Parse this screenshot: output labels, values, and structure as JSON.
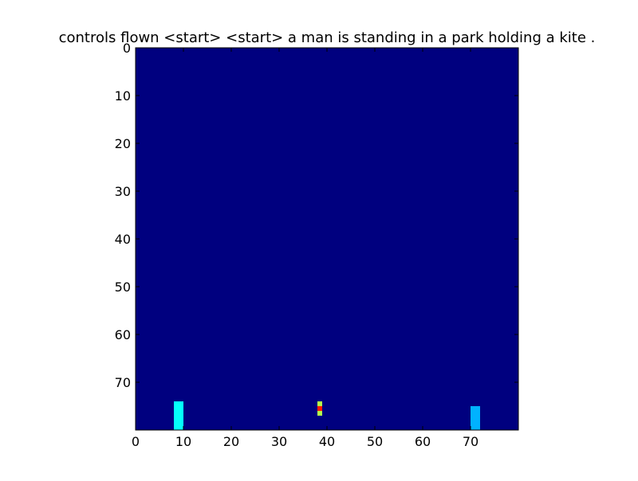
{
  "chart_data": {
    "type": "heatmap",
    "title": "controls flown <start> <start> a man is standing in a park holding a kite .",
    "xlabel": "",
    "ylabel": "",
    "grid_size": [
      80,
      80
    ],
    "xlim": [
      0,
      80
    ],
    "ylim": [
      80,
      0
    ],
    "x_ticks": [
      0,
      10,
      20,
      30,
      40,
      50,
      60,
      70
    ],
    "y_ticks": [
      0,
      10,
      20,
      30,
      40,
      50,
      60,
      70
    ],
    "grid": false,
    "background_value": 0.0,
    "colormap": "jet",
    "colormap_stops": [
      "#00007f",
      "#0000ff",
      "#007fff",
      "#00ffff",
      "#7fff7f",
      "#ffff00",
      "#ff7f00",
      "#ff0000",
      "#7f0000"
    ],
    "hotspots": [
      {
        "x": [
          8,
          9
        ],
        "y": [
          74,
          79
        ],
        "value": 0.38
      },
      {
        "x": [
          70,
          71
        ],
        "y": [
          75,
          79
        ],
        "value": 0.3
      },
      {
        "x": [
          38,
          38
        ],
        "y": [
          74,
          74
        ],
        "value": 0.55
      },
      {
        "x": [
          38,
          38
        ],
        "y": [
          75,
          75
        ],
        "value": 0.85
      },
      {
        "x": [
          38,
          38
        ],
        "y": [
          76,
          76
        ],
        "value": 0.55
      }
    ]
  }
}
